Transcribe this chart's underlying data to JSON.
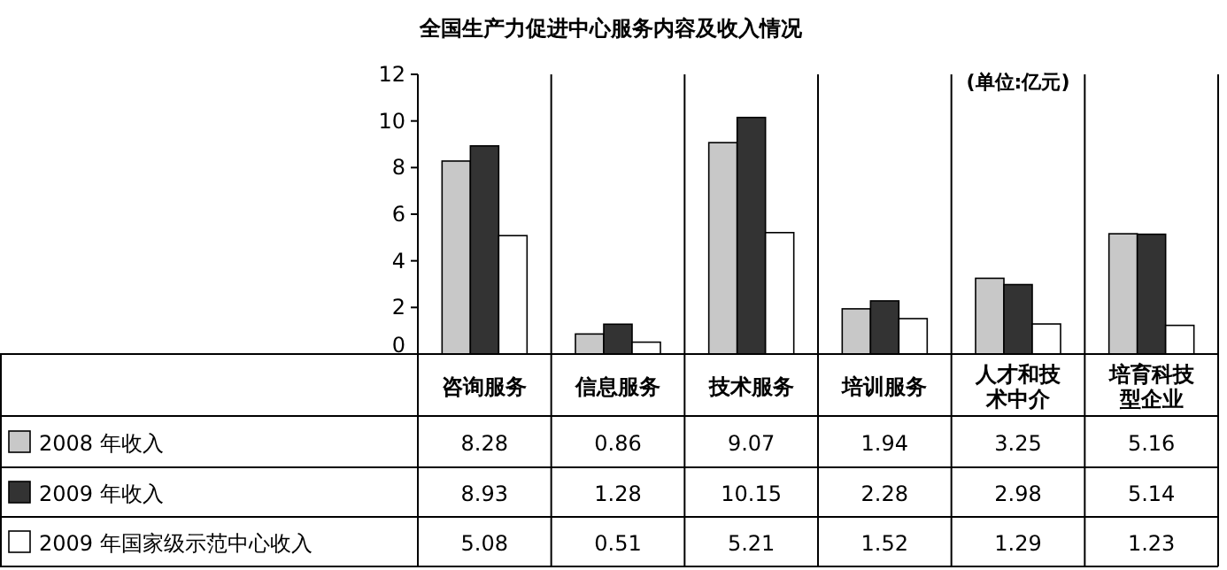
{
  "chart_data": {
    "type": "bar",
    "title": "全国生产力促进中心服务内容及收入情况",
    "annotations": [
      "(单位:亿元)"
    ],
    "categories": [
      "咨询服务",
      "信息服务",
      "技术服务",
      "培训服务",
      "人才和技术中介",
      "培育科技型企业"
    ],
    "series": [
      {
        "name": "2008 年收入",
        "color": "#c8c8c8",
        "values": [
          8.28,
          0.86,
          9.07,
          1.94,
          3.25,
          5.16
        ]
      },
      {
        "name": "2009 年收入",
        "color": "#333333",
        "values": [
          8.93,
          1.28,
          10.15,
          2.28,
          2.98,
          5.14
        ]
      },
      {
        "name": "2009 年国家级示范中心收入",
        "color": "#ffffff",
        "values": [
          5.08,
          0.51,
          5.21,
          1.52,
          1.29,
          1.23
        ]
      }
    ],
    "ylim": [
      0,
      12
    ],
    "yticks": [
      0,
      2,
      4,
      6,
      8,
      10,
      12
    ],
    "data_labels": true,
    "legend": "bottom",
    "grid": false
  }
}
